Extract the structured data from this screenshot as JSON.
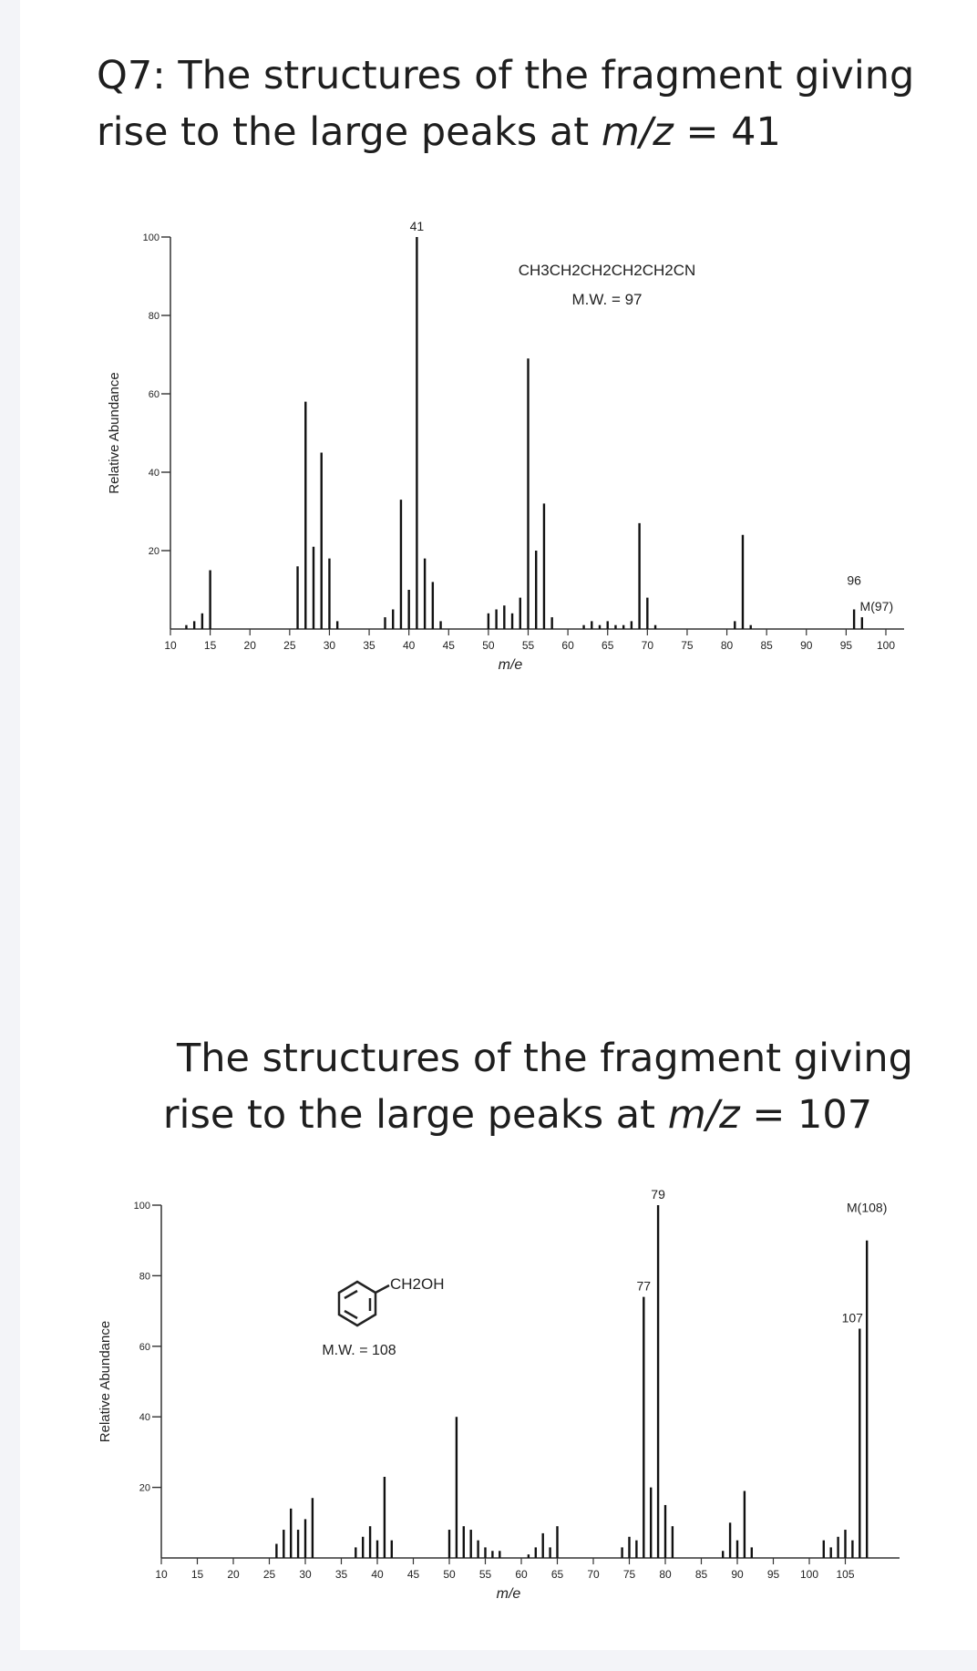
{
  "q1": {
    "line1": "Q7: The structures of the fragment giving",
    "line2_prefix": "rise to the large peaks at ",
    "line2_var": "m/z",
    "line2_suffix": " = 41"
  },
  "q2": {
    "line1": "The structures of the fragment giving",
    "line2_prefix": "rise to the large peaks at ",
    "line2_var": "m/z",
    "line2_suffix": " = 107"
  },
  "chart_data": [
    {
      "type": "bar",
      "compound": "CH3CH2CH2CH2CH2CN",
      "mw_label": "M.W. = 97",
      "xlabel": "m/e",
      "ylabel": "Relative Abundance",
      "xlim": [
        10,
        100
      ],
      "ylim": [
        0,
        100
      ],
      "x_ticks": [
        10,
        15,
        20,
        25,
        30,
        35,
        40,
        45,
        50,
        55,
        60,
        65,
        70,
        75,
        80,
        85,
        90,
        95,
        100
      ],
      "y_ticks": [
        20,
        40,
        60,
        80,
        100
      ],
      "x": [
        12,
        13,
        14,
        15,
        26,
        27,
        28,
        29,
        30,
        31,
        37,
        38,
        39,
        40,
        41,
        42,
        43,
        44,
        50,
        51,
        52,
        53,
        54,
        55,
        56,
        57,
        58,
        62,
        63,
        64,
        65,
        66,
        67,
        68,
        69,
        70,
        71,
        81,
        82,
        83,
        96,
        97
      ],
      "values": [
        1,
        2,
        4,
        15,
        16,
        58,
        21,
        45,
        18,
        2,
        3,
        5,
        33,
        10,
        100,
        18,
        12,
        2,
        4,
        5,
        6,
        4,
        8,
        69,
        20,
        32,
        3,
        1,
        2,
        1,
        2,
        1,
        1,
        2,
        27,
        8,
        1,
        2,
        24,
        1,
        5,
        3
      ],
      "peak_labels": [
        {
          "x": 41,
          "text": "41"
        },
        {
          "x": 96,
          "text": "96"
        },
        {
          "x": 97,
          "text": "M(97)"
        }
      ]
    },
    {
      "type": "bar",
      "compound": "CH2OH",
      "mw_label": "M.W. = 108",
      "xlabel": "m/e",
      "ylabel": "Relative Abundance",
      "xlim": [
        10,
        110
      ],
      "ylim": [
        0,
        100
      ],
      "x_ticks": [
        10,
        15,
        20,
        25,
        30,
        35,
        40,
        45,
        50,
        55,
        60,
        65,
        70,
        75,
        80,
        85,
        90,
        95,
        100,
        105
      ],
      "x_tick_labels": [
        "10",
        "15",
        "20",
        "25",
        "30",
        "35",
        "40",
        "45",
        "50",
        "55",
        "60",
        "65",
        "70",
        "75",
        "80",
        "85",
        "90",
        "95",
        "100",
        "105"
      ],
      "y_ticks": [
        20,
        40,
        60,
        80,
        100
      ],
      "x": [
        26,
        27,
        28,
        29,
        30,
        31,
        37,
        38,
        39,
        40,
        41,
        42,
        50,
        51,
        52,
        53,
        54,
        55,
        56,
        57,
        61,
        62,
        63,
        64,
        65,
        74,
        75,
        76,
        77,
        78,
        79,
        80,
        81,
        88,
        89,
        90,
        91,
        92,
        102,
        103,
        104,
        105,
        106,
        107,
        108
      ],
      "values": [
        4,
        8,
        14,
        8,
        11,
        17,
        3,
        6,
        9,
        5,
        23,
        5,
        8,
        40,
        9,
        8,
        5,
        3,
        2,
        2,
        1,
        3,
        7,
        3,
        9,
        3,
        6,
        5,
        74,
        20,
        100,
        15,
        9,
        2,
        10,
        5,
        19,
        3,
        5,
        3,
        6,
        8,
        5,
        65,
        90
      ],
      "peak_labels": [
        {
          "x": 77,
          "text": "77"
        },
        {
          "x": 79,
          "text": "79"
        },
        {
          "x": 107,
          "text": "107"
        },
        {
          "x": 108,
          "text": "M(108)"
        }
      ]
    }
  ]
}
